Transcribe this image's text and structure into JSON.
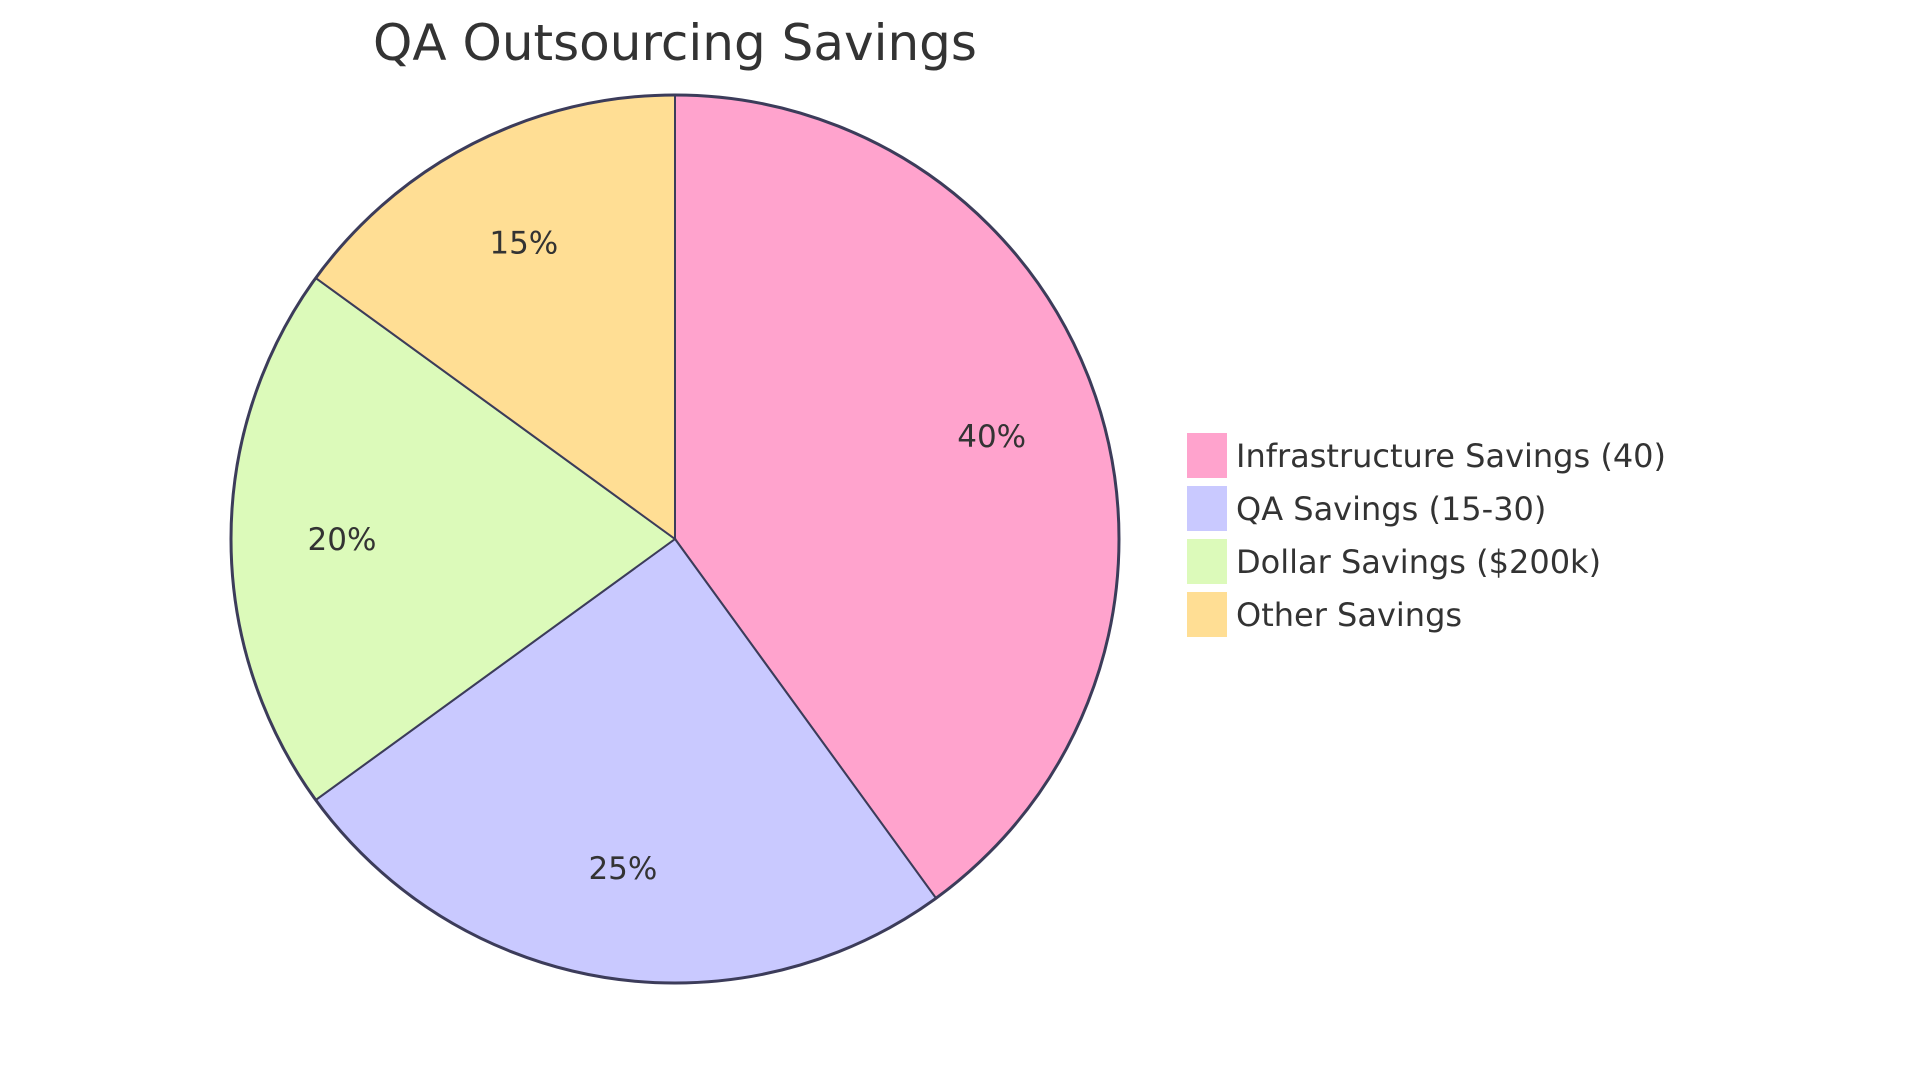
{
  "chart_data": {
    "type": "pie",
    "title": "QA Outsourcing Savings",
    "categories": [
      "Infrastructure Savings (40)",
      "QA Savings (15-30)",
      "Dollar Savings ($200k)",
      "Other Savings"
    ],
    "values": [
      40,
      25,
      20,
      15
    ],
    "labels": [
      "40%",
      "25%",
      "20%",
      "15%"
    ],
    "colors": [
      "#FFA3CD",
      "#C9C9FF",
      "#DCFABA",
      "#FFDE94"
    ],
    "stroke_color": "#3C3C5A",
    "legend_position": "right"
  }
}
